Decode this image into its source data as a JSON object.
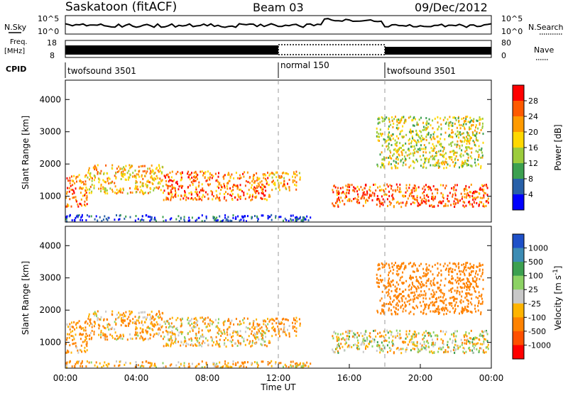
{
  "header": {
    "station": "Saskatoon (fitACF)",
    "beam": "Beam 03",
    "date": "09/Dec/2012"
  },
  "noise_panel": {
    "left_label": "N.Sky",
    "right_label": "N.Search",
    "left_ticks": [
      "10^5",
      "10^0"
    ],
    "right_ticks": [
      "10^5",
      "10^0"
    ]
  },
  "freq_panel": {
    "left_label_line1": "Freq.",
    "left_label_line2": "[MHz]",
    "left_ticks": [
      "18",
      "8"
    ],
    "right_label": "Nave",
    "right_ticks": [
      "80",
      "0"
    ]
  },
  "cpid_panel": {
    "label": "CPID",
    "segments": [
      {
        "name": "twofsound 3501",
        "start": 0,
        "end": 12
      },
      {
        "name": "normal 150",
        "start": 12,
        "end": 18
      },
      {
        "name": "twofsound 3501",
        "start": 18,
        "end": 24
      }
    ]
  },
  "axes": {
    "ylabel": "Slant Range [km]",
    "yticks": [
      "4000",
      "3000",
      "2000",
      "1000"
    ],
    "xticks": [
      "00:00",
      "04:00",
      "08:00",
      "12:00",
      "16:00",
      "20:00",
      "00:00"
    ],
    "xlabel": "Time UT"
  },
  "power_colorbar": {
    "label": "Power [dB]",
    "ticks": [
      "28",
      "24",
      "20",
      "16",
      "12",
      "8",
      "4"
    ],
    "colors": [
      "#ff0000",
      "#ff5a00",
      "#ff9a00",
      "#ffd800",
      "#9ccc3c",
      "#3ca050",
      "#2860a8",
      "#0000ff"
    ]
  },
  "velocity_colorbar": {
    "label": "Velocity [m s",
    "label_sup": "-1",
    "label_close": "]",
    "ticks": [
      "1000",
      "500",
      "100",
      "25",
      "-25",
      "-100",
      "-500",
      "-1000"
    ],
    "colors": [
      "#1e50c8",
      "#3c8cb4",
      "#3ca050",
      "#8cd264",
      "#c8c8c8",
      "#ffb400",
      "#ff8200",
      "#ff5000",
      "#ff0000"
    ]
  },
  "chart_data": {
    "type": "heatmap",
    "title": "Saskatoon (fitACF) Beam 03 09/Dec/2012",
    "xlabel": "Time UT",
    "ylabel": "Slant Range [km]",
    "xlim": [
      0,
      24
    ],
    "ylim": [
      200,
      4600
    ],
    "mode_boundaries_hours": [
      12,
      18
    ],
    "scatter_regions": [
      {
        "t_start": 0.0,
        "t_end": 1.2,
        "range_low": 700,
        "range_high": 1700,
        "power_db": 26,
        "velocity": -150
      },
      {
        "t_start": 1.2,
        "t_end": 5.5,
        "range_low": 1100,
        "range_high": 2000,
        "power_db": 22,
        "velocity": -100
      },
      {
        "t_start": 5.5,
        "t_end": 11.5,
        "range_low": 900,
        "range_high": 1800,
        "power_db": 26,
        "velocity": -80
      },
      {
        "t_start": 11.5,
        "t_end": 13.2,
        "range_low": 1200,
        "range_high": 1800,
        "power_db": 24,
        "velocity": -120
      },
      {
        "t_start": 15.0,
        "t_end": 23.8,
        "range_low": 700,
        "range_high": 1400,
        "power_db": 28,
        "velocity": -10
      },
      {
        "t_start": 17.5,
        "t_end": 23.5,
        "range_low": 1900,
        "range_high": 3500,
        "power_db": 18,
        "velocity": -300
      },
      {
        "t_start": 0.0,
        "t_end": 14.0,
        "range_low": 250,
        "range_high": 450,
        "power_db": 6,
        "velocity": -100
      }
    ]
  }
}
